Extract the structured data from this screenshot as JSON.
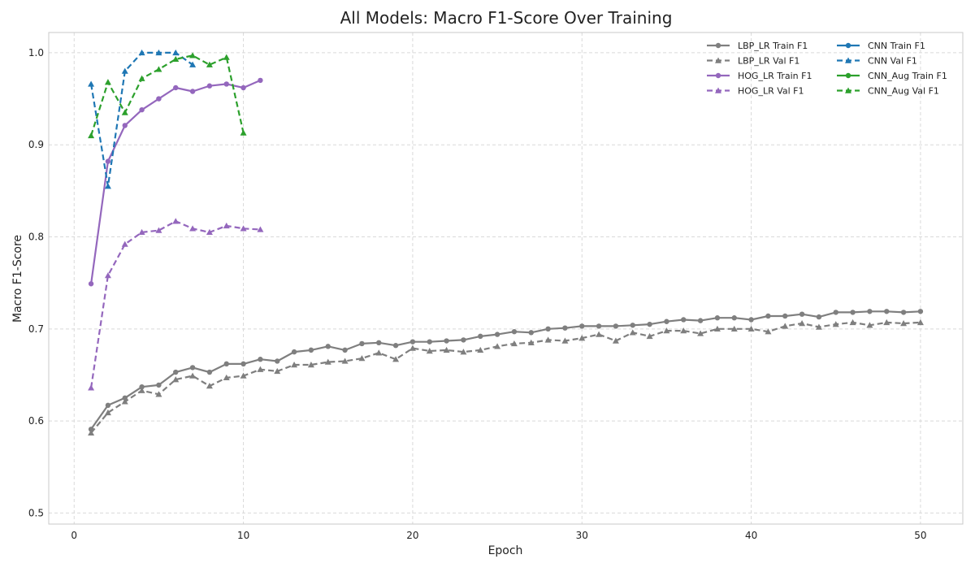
{
  "chart_data": {
    "type": "line",
    "title": "All Models: Macro F1-Score Over Training",
    "xlabel": "Epoch",
    "ylabel": "Macro F1-Score",
    "xlim": [
      -1.5,
      52.5
    ],
    "ylim": [
      0.488,
      1.022
    ],
    "xticks": [
      0,
      10,
      20,
      30,
      40,
      50
    ],
    "yticks": [
      0.5,
      0.6,
      0.7,
      0.8,
      0.9,
      1.0
    ],
    "grid": true,
    "legend_position": "top-right",
    "legend_columns": 2,
    "series": [
      {
        "name": "LBP_LR Train F1",
        "color": "#7f7f7f",
        "style": "solid",
        "marker": "circle",
        "x": [
          1,
          2,
          3,
          4,
          5,
          6,
          7,
          8,
          9,
          10,
          11,
          12,
          13,
          14,
          15,
          16,
          17,
          18,
          19,
          20,
          21,
          22,
          23,
          24,
          25,
          26,
          27,
          28,
          29,
          30,
          31,
          32,
          33,
          34,
          35,
          36,
          37,
          38,
          39,
          40,
          41,
          42,
          43,
          44,
          45,
          46,
          47,
          48,
          49,
          50
        ],
        "y": [
          0.591,
          0.617,
          0.625,
          0.637,
          0.639,
          0.653,
          0.658,
          0.653,
          0.662,
          0.662,
          0.667,
          0.665,
          0.675,
          0.677,
          0.681,
          0.677,
          0.684,
          0.685,
          0.682,
          0.686,
          0.686,
          0.687,
          0.688,
          0.692,
          0.694,
          0.697,
          0.696,
          0.7,
          0.701,
          0.703,
          0.703,
          0.703,
          0.704,
          0.705,
          0.708,
          0.71,
          0.709,
          0.712,
          0.712,
          0.71,
          0.714,
          0.714,
          0.716,
          0.713,
          0.718,
          0.718,
          0.719,
          0.719,
          0.718,
          0.719
        ]
      },
      {
        "name": "LBP_LR Val F1",
        "color": "#7f7f7f",
        "style": "dashed",
        "marker": "triangle",
        "x": [
          1,
          2,
          3,
          4,
          5,
          6,
          7,
          8,
          9,
          10,
          11,
          12,
          13,
          14,
          15,
          16,
          17,
          18,
          19,
          20,
          21,
          22,
          23,
          24,
          25,
          26,
          27,
          28,
          29,
          30,
          31,
          32,
          33,
          34,
          35,
          36,
          37,
          38,
          39,
          40,
          41,
          42,
          43,
          44,
          45,
          46,
          47,
          48,
          49,
          50
        ],
        "y": [
          0.587,
          0.609,
          0.621,
          0.633,
          0.629,
          0.645,
          0.649,
          0.638,
          0.647,
          0.649,
          0.656,
          0.654,
          0.661,
          0.661,
          0.664,
          0.665,
          0.668,
          0.674,
          0.667,
          0.679,
          0.676,
          0.677,
          0.675,
          0.677,
          0.681,
          0.684,
          0.685,
          0.688,
          0.687,
          0.69,
          0.694,
          0.687,
          0.696,
          0.692,
          0.698,
          0.698,
          0.695,
          0.7,
          0.7,
          0.7,
          0.697,
          0.703,
          0.706,
          0.702,
          0.705,
          0.707,
          0.704,
          0.707,
          0.706,
          0.707
        ]
      },
      {
        "name": "HOG_LR Train F1",
        "color": "#9467bd",
        "style": "solid",
        "marker": "circle",
        "x": [
          1,
          2,
          3,
          4,
          5,
          6,
          7,
          8,
          9,
          10,
          11
        ],
        "y": [
          0.749,
          0.882,
          0.921,
          0.938,
          0.95,
          0.962,
          0.958,
          0.964,
          0.966,
          0.962,
          0.97
        ]
      },
      {
        "name": "HOG_LR Val F1",
        "color": "#9467bd",
        "style": "dashed",
        "marker": "triangle",
        "x": [
          1,
          2,
          3,
          4,
          5,
          6,
          7,
          8,
          9,
          10,
          11
        ],
        "y": [
          0.636,
          0.758,
          0.792,
          0.805,
          0.807,
          0.817,
          0.809,
          0.805,
          0.812,
          0.809,
          0.808
        ]
      },
      {
        "name": "CNN Train F1",
        "color": "#1f77b4",
        "style": "solid",
        "marker": "circle",
        "x": [],
        "y": []
      },
      {
        "name": "CNN Val F1",
        "color": "#1f77b4",
        "style": "dashed",
        "marker": "triangle",
        "x": [
          1,
          2,
          3,
          4,
          5,
          6,
          7
        ],
        "y": [
          0.966,
          0.855,
          0.98,
          1.0,
          1.0,
          1.0,
          0.987
        ]
      },
      {
        "name": "CNN_Aug Train F1",
        "color": "#2ca02c",
        "style": "solid",
        "marker": "circle",
        "x": [],
        "y": []
      },
      {
        "name": "CNN_Aug Val F1",
        "color": "#2ca02c",
        "style": "dashed",
        "marker": "triangle",
        "x": [
          1,
          2,
          3,
          4,
          5,
          6,
          7,
          8,
          9,
          10
        ],
        "y": [
          0.91,
          0.968,
          0.935,
          0.972,
          0.982,
          0.993,
          0.997,
          0.987,
          0.995,
          0.913
        ]
      }
    ]
  }
}
